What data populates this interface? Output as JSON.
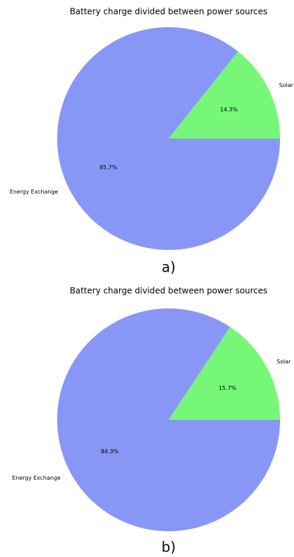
{
  "chart_data": [
    {
      "type": "pie",
      "title": "Battery charge divided between power sources",
      "categories": [
        "Solar",
        "Energy Exchange"
      ],
      "values": [
        14.3,
        85.7
      ],
      "value_labels": [
        "14.3%",
        "85.7%"
      ],
      "colors": [
        "#77f777",
        "#8897f5"
      ],
      "caption": "a)"
    },
    {
      "type": "pie",
      "title": "Battery charge divided between power sources",
      "categories": [
        "Solar",
        "Energy Exchange"
      ],
      "values": [
        15.7,
        84.3
      ],
      "value_labels": [
        "15.7%",
        "84.3%"
      ],
      "colors": [
        "#77f777",
        "#8897f5"
      ],
      "caption": "b)"
    }
  ]
}
